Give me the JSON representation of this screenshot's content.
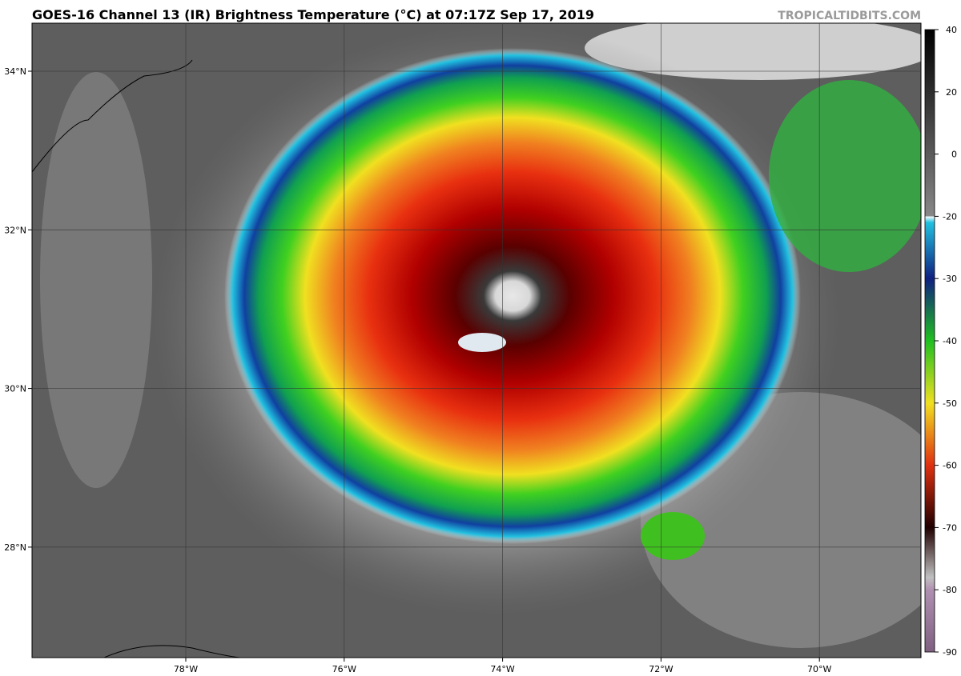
{
  "header": {
    "title": "GOES-16 Channel 13 (IR) Brightness Temperature (°C) at 07:17Z Sep 17, 2019",
    "watermark": "TROPICALTIDBITS.COM"
  },
  "map": {
    "lat_labels": [
      "34°N",
      "32°N",
      "30°N",
      "28°N"
    ],
    "lon_labels": [
      "78°W",
      "76°W",
      "74°W",
      "72°W",
      "70°W"
    ]
  },
  "colorbar": {
    "ticks": [
      40,
      20,
      0,
      -20,
      -30,
      -40,
      -50,
      -60,
      -70,
      -80,
      -90
    ]
  }
}
